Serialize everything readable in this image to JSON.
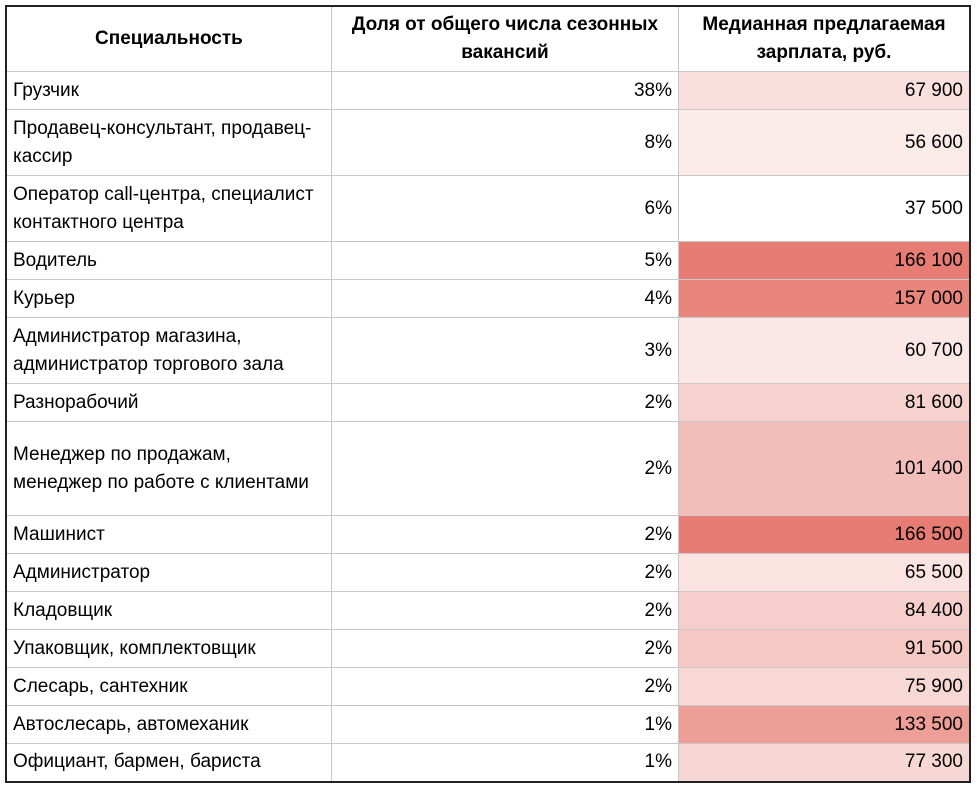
{
  "table": {
    "headers": [
      "Специальность",
      "Доля от общего числа сезонных вакансий",
      "Медианная предлагаемая зарплата, руб."
    ],
    "heat_color_max": "#e67c73",
    "heat_color_min": "#ffffff",
    "rows": [
      {
        "spec": "Грузчик",
        "share": "38%",
        "salary": "67 900"
      },
      {
        "spec": "Продавец-консультант, продавец-кассир",
        "share": "8%",
        "salary": "56 600"
      },
      {
        "spec": "Оператор call-центра, специалист контактного центра",
        "share": "6%",
        "salary": "37 500"
      },
      {
        "spec": "Водитель",
        "share": "5%",
        "salary": "166 100"
      },
      {
        "spec": "Курьер",
        "share": "4%",
        "salary": "157 000"
      },
      {
        "spec": "Администратор магазина, администратор торгового зала",
        "share": "3%",
        "salary": "60 700"
      },
      {
        "spec": "Разнорабочий",
        "share": "2%",
        "salary": "81 600"
      },
      {
        "spec": "Менеджер по продажам, менеджер по работе с клиентами",
        "share": "2%",
        "salary": "101 400"
      },
      {
        "spec": "Машинист",
        "share": "2%",
        "salary": "166 500"
      },
      {
        "spec": "Администратор",
        "share": "2%",
        "salary": "65 500"
      },
      {
        "spec": "Кладовщик",
        "share": "2%",
        "salary": "84 400"
      },
      {
        "spec": "Упаковщик, комплектовщик",
        "share": "2%",
        "salary": "91 500"
      },
      {
        "spec": "Слесарь, сантехник",
        "share": "2%",
        "salary": "75 900"
      },
      {
        "spec": "Автослесарь, автомеханик",
        "share": "1%",
        "salary": "133 500"
      },
      {
        "spec": "Официант, бармен, бариста",
        "share": "1%",
        "salary": "77 300"
      }
    ]
  }
}
